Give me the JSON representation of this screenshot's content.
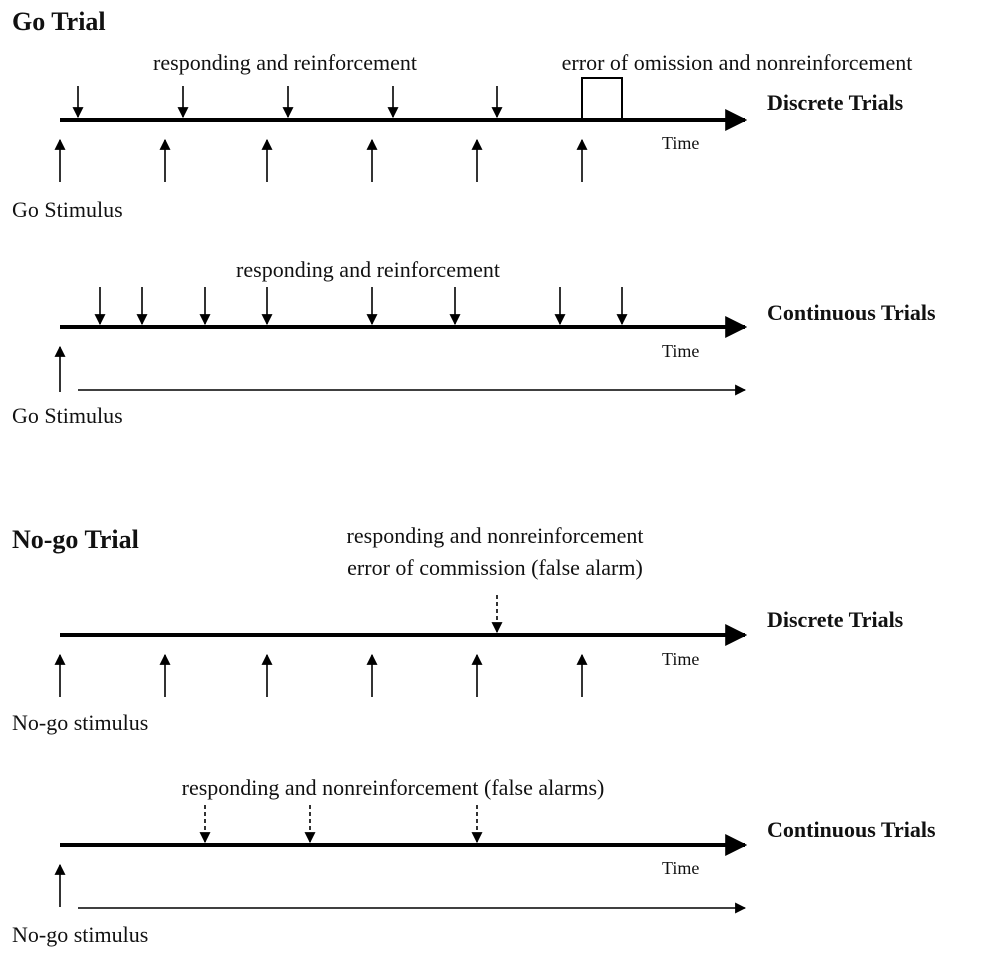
{
  "sections": [
    {
      "title": "Go Trial",
      "panels": [
        {
          "labels": [
            "responding and reinforcement",
            "error of omission and nonreinforcement"
          ],
          "mode": "Discrete Trials",
          "axis": "Time",
          "stimulus": "Go Stimulus"
        },
        {
          "labels": [
            "responding and reinforcement"
          ],
          "mode": "Continuous Trials",
          "axis": "Time",
          "stimulus": "Go Stimulus"
        }
      ]
    },
    {
      "title": "No-go Trial",
      "panels": [
        {
          "labels": [
            "responding and nonreinforcement",
            "error of commission (false alarm)"
          ],
          "mode": "Discrete Trials",
          "axis": "Time",
          "stimulus": "No-go stimulus"
        },
        {
          "labels": [
            "responding and nonreinforcement (false alarms)"
          ],
          "mode": "Continuous Trials",
          "axis": "Time",
          "stimulus": "No-go stimulus"
        }
      ]
    }
  ]
}
